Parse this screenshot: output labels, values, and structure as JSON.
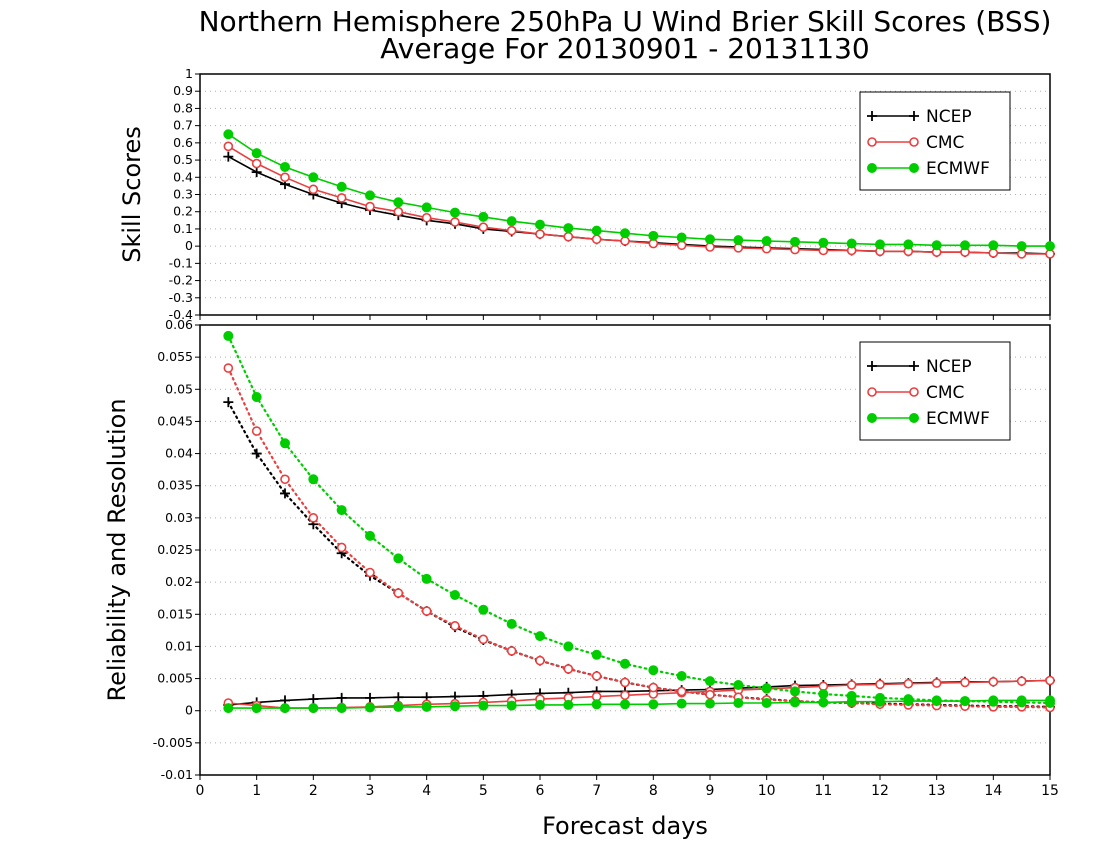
{
  "title_line1": "Northern Hemisphere 250hPa U Wind Brier Skill Scores (BSS)",
  "title_line2": "Average For 20130901 - 20131130",
  "xlabel": "Forecast days",
  "colors": {
    "NCEP": "#000000",
    "CMC": "#e84040",
    "ECMWF": "#00cc00",
    "grid": "#b0b0b0"
  },
  "chart_data": [
    {
      "type": "line",
      "ylabel": "Skill Scores",
      "xlim": [
        0,
        15
      ],
      "ylim": [
        -0.4,
        1
      ],
      "x_ticks": [
        "0",
        "1",
        "2",
        "3",
        "4",
        "5",
        "6",
        "7",
        "8",
        "9",
        "10",
        "11",
        "12",
        "13",
        "14",
        "15"
      ],
      "y_ticks": [
        "-0.4",
        "-0.3",
        "-0.2",
        "-0.1",
        "0",
        "0.1",
        "0.2",
        "0.3",
        "0.4",
        "0.5",
        "0.6",
        "0.7",
        "0.8",
        "0.9",
        "1"
      ],
      "grid": true,
      "legend_position": "top-right",
      "x": [
        0.5,
        1,
        1.5,
        2,
        2.5,
        3,
        3.5,
        4,
        4.5,
        5,
        5.5,
        6,
        6.5,
        7,
        7.5,
        8,
        8.5,
        9,
        9.5,
        10,
        10.5,
        11,
        11.5,
        12,
        12.5,
        13,
        13.5,
        14,
        14.5,
        15
      ],
      "series": [
        {
          "name": "NCEP",
          "marker": "plus",
          "style": "solid",
          "values": [
            0.52,
            0.43,
            0.36,
            0.3,
            0.25,
            0.21,
            0.18,
            0.15,
            0.13,
            0.1,
            0.085,
            0.07,
            0.055,
            0.04,
            0.03,
            0.02,
            0.01,
            0.0,
            -0.005,
            -0.01,
            -0.015,
            -0.02,
            -0.025,
            -0.03,
            -0.03,
            -0.035,
            -0.035,
            -0.04,
            -0.04,
            -0.045
          ]
        },
        {
          "name": "CMC",
          "marker": "open-circle",
          "style": "solid",
          "values": [
            0.58,
            0.48,
            0.4,
            0.33,
            0.28,
            0.23,
            0.2,
            0.165,
            0.14,
            0.11,
            0.09,
            0.07,
            0.055,
            0.04,
            0.03,
            0.015,
            0.005,
            -0.005,
            -0.01,
            -0.015,
            -0.02,
            -0.025,
            -0.025,
            -0.03,
            -0.03,
            -0.035,
            -0.035,
            -0.04,
            -0.045,
            -0.045
          ]
        },
        {
          "name": "ECMWF",
          "marker": "filled-circle",
          "style": "solid",
          "values": [
            0.65,
            0.54,
            0.46,
            0.4,
            0.345,
            0.295,
            0.255,
            0.225,
            0.195,
            0.17,
            0.145,
            0.125,
            0.105,
            0.09,
            0.075,
            0.06,
            0.05,
            0.04,
            0.035,
            0.03,
            0.025,
            0.02,
            0.015,
            0.01,
            0.01,
            0.005,
            0.005,
            0.005,
            0.0,
            0.0
          ]
        }
      ]
    },
    {
      "type": "line",
      "ylabel": "Reliability and Resolution",
      "xlabel": "Forecast days",
      "xlim": [
        0,
        15
      ],
      "ylim": [
        -0.01,
        0.06
      ],
      "x_ticks": [
        "0",
        "1",
        "2",
        "3",
        "4",
        "5",
        "6",
        "7",
        "8",
        "9",
        "10",
        "11",
        "12",
        "13",
        "14",
        "15"
      ],
      "y_ticks": [
        "-0.01",
        "-0.005",
        "0",
        "0.005",
        "0.01",
        "0.015",
        "0.02",
        "0.025",
        "0.03",
        "0.035",
        "0.04",
        "0.045",
        "0.05",
        "0.055",
        "0.06"
      ],
      "grid": true,
      "legend_position": "top-right",
      "x": [
        0.5,
        1,
        1.5,
        2,
        2.5,
        3,
        3.5,
        4,
        4.5,
        5,
        5.5,
        6,
        6.5,
        7,
        7.5,
        8,
        8.5,
        9,
        9.5,
        10,
        10.5,
        11,
        11.5,
        12,
        12.5,
        13,
        13.5,
        14,
        14.5,
        15
      ],
      "series": [
        {
          "name": "NCEP",
          "marker": "plus",
          "style": "solid",
          "component": "reliability",
          "values": [
            0.0009,
            0.0013,
            0.0016,
            0.0018,
            0.002,
            0.002,
            0.0021,
            0.0021,
            0.0022,
            0.0023,
            0.0025,
            0.0027,
            0.0028,
            0.003,
            0.003,
            0.0031,
            0.0032,
            0.0033,
            0.0035,
            0.0037,
            0.0039,
            0.004,
            0.0041,
            0.0042,
            0.0043,
            0.0044,
            0.0045,
            0.0045,
            0.0046,
            0.0047
          ]
        },
        {
          "name": "NCEP",
          "marker": "plus",
          "style": "dotted",
          "component": "resolution",
          "values": [
            0.048,
            0.04,
            0.0338,
            0.029,
            0.0245,
            0.021,
            0.0183,
            0.0155,
            0.013,
            0.011,
            0.0093,
            0.0078,
            0.0065,
            0.0054,
            0.0044,
            0.0036,
            0.003,
            0.0025,
            0.0021,
            0.0018,
            0.0015,
            0.0013,
            0.0012,
            0.0011,
            0.001,
            0.0009,
            0.0008,
            0.0007,
            0.0007,
            0.0006
          ]
        },
        {
          "name": "CMC",
          "marker": "open-circle",
          "style": "solid",
          "component": "reliability",
          "values": [
            0.0012,
            0.0008,
            0.0004,
            0.0004,
            0.0005,
            0.0006,
            0.0008,
            0.001,
            0.0011,
            0.0013,
            0.0015,
            0.0018,
            0.002,
            0.0022,
            0.0024,
            0.0026,
            0.0028,
            0.003,
            0.0032,
            0.0034,
            0.0036,
            0.0038,
            0.004,
            0.0041,
            0.0042,
            0.0043,
            0.0044,
            0.0045,
            0.0046,
            0.0047
          ]
        },
        {
          "name": "CMC",
          "marker": "open-circle",
          "style": "dotted",
          "component": "resolution",
          "values": [
            0.0533,
            0.0435,
            0.036,
            0.03,
            0.0254,
            0.0215,
            0.0183,
            0.0155,
            0.0132,
            0.0111,
            0.0093,
            0.0078,
            0.0065,
            0.0054,
            0.0044,
            0.0036,
            0.003,
            0.0025,
            0.0021,
            0.0017,
            0.0015,
            0.0013,
            0.0012,
            0.001,
            0.0009,
            0.0008,
            0.0007,
            0.0006,
            0.0006,
            0.0005
          ]
        },
        {
          "name": "ECMWF",
          "marker": "filled-circle",
          "style": "solid",
          "component": "reliability",
          "values": [
            0.0004,
            0.0004,
            0.0004,
            0.0004,
            0.0004,
            0.0005,
            0.0006,
            0.0006,
            0.0007,
            0.0008,
            0.0008,
            0.0009,
            0.0009,
            0.001,
            0.001,
            0.001,
            0.0011,
            0.0011,
            0.0012,
            0.0012,
            0.0013,
            0.0013,
            0.0014,
            0.0014,
            0.0015,
            0.0015,
            0.0015,
            0.0016,
            0.0016,
            0.0016
          ]
        },
        {
          "name": "ECMWF",
          "marker": "filled-circle",
          "style": "dotted",
          "component": "resolution",
          "values": [
            0.0583,
            0.0488,
            0.0416,
            0.036,
            0.0312,
            0.0272,
            0.0237,
            0.0205,
            0.018,
            0.0157,
            0.0135,
            0.0116,
            0.01,
            0.0087,
            0.0073,
            0.0063,
            0.0054,
            0.0046,
            0.004,
            0.0035,
            0.003,
            0.0026,
            0.0023,
            0.002,
            0.0018,
            0.0016,
            0.0015,
            0.0014,
            0.0013,
            0.0012
          ]
        }
      ]
    }
  ]
}
